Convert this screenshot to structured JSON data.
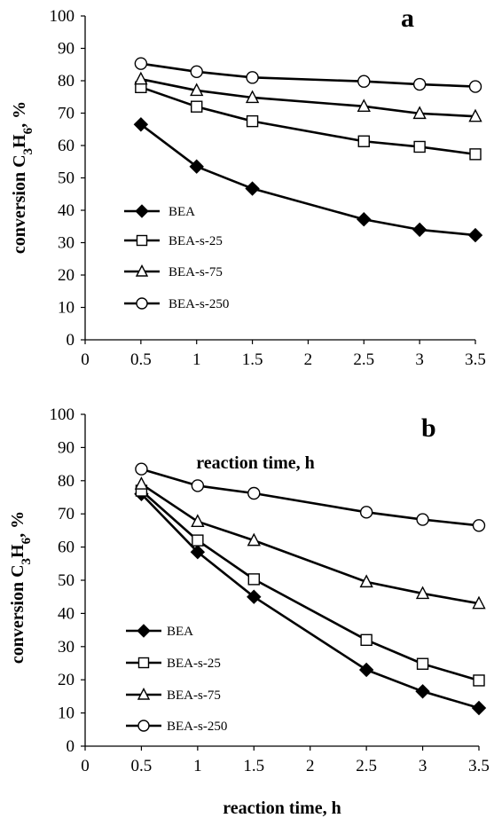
{
  "chart_data": [
    {
      "type": "line",
      "panel_label": "a",
      "x": [
        0.5,
        1,
        1.5,
        2.5,
        3,
        3.5
      ],
      "xlim": [
        0,
        3.5
      ],
      "ylim": [
        0,
        100
      ],
      "x_ticks": [
        "0",
        "0.5",
        "1",
        "1.5",
        "2",
        "2.5",
        "3",
        "3.5"
      ],
      "y_ticks": [
        "0",
        "10",
        "20",
        "30",
        "40",
        "50",
        "60",
        "70",
        "80",
        "90",
        "100"
      ],
      "ylabel": "conversion C3H6, %",
      "ylabel_parts": [
        "conversion C",
        "3",
        "H",
        "6",
        ", %"
      ],
      "xlabel": "reaction time, h",
      "legend_position": "left",
      "series": [
        {
          "name": "BEA",
          "marker": "diamond",
          "values": [
            66.5,
            53.5,
            46.7,
            37.2,
            34.0,
            32.3
          ]
        },
        {
          "name": "BEA-s-25",
          "marker": "square",
          "values": [
            78.0,
            72.0,
            67.5,
            61.3,
            59.6,
            57.3
          ]
        },
        {
          "name": "BEA-s-75",
          "marker": "triangle",
          "values": [
            80.5,
            77.0,
            74.8,
            72.1,
            69.9,
            69.0
          ]
        },
        {
          "name": "BEA-s-250",
          "marker": "circle",
          "values": [
            85.3,
            82.8,
            81.0,
            79.8,
            78.9,
            78.2
          ]
        }
      ]
    },
    {
      "type": "line",
      "panel_label": "b",
      "x": [
        0.5,
        1,
        1.5,
        2.5,
        3,
        3.5
      ],
      "xlim": [
        0,
        3.5
      ],
      "ylim": [
        0,
        100
      ],
      "x_ticks": [
        "0",
        "0.5",
        "1",
        "1.5",
        "2",
        "2.5",
        "3",
        "3.5"
      ],
      "y_ticks": [
        "0",
        "10",
        "20",
        "30",
        "40",
        "50",
        "60",
        "70",
        "80",
        "90",
        "100"
      ],
      "ylabel": "conversion C3H6, %",
      "ylabel_parts": [
        "conversion C",
        "3",
        "H",
        "6",
        ", %"
      ],
      "xlabel": "reaction time, h",
      "legend_position": "left",
      "series": [
        {
          "name": "BEA",
          "marker": "diamond",
          "values": [
            76.0,
            58.5,
            45.0,
            23.0,
            16.5,
            11.5
          ]
        },
        {
          "name": "BEA-s-25",
          "marker": "square",
          "values": [
            77.0,
            62.0,
            50.3,
            32.0,
            24.8,
            19.8
          ]
        },
        {
          "name": "BEA-s-75",
          "marker": "triangle",
          "values": [
            79.0,
            67.7,
            62.0,
            49.5,
            46.0,
            43.0
          ]
        },
        {
          "name": "BEA-s-250",
          "marker": "circle",
          "values": [
            83.5,
            78.5,
            76.2,
            70.5,
            68.3,
            66.5
          ]
        }
      ]
    }
  ]
}
